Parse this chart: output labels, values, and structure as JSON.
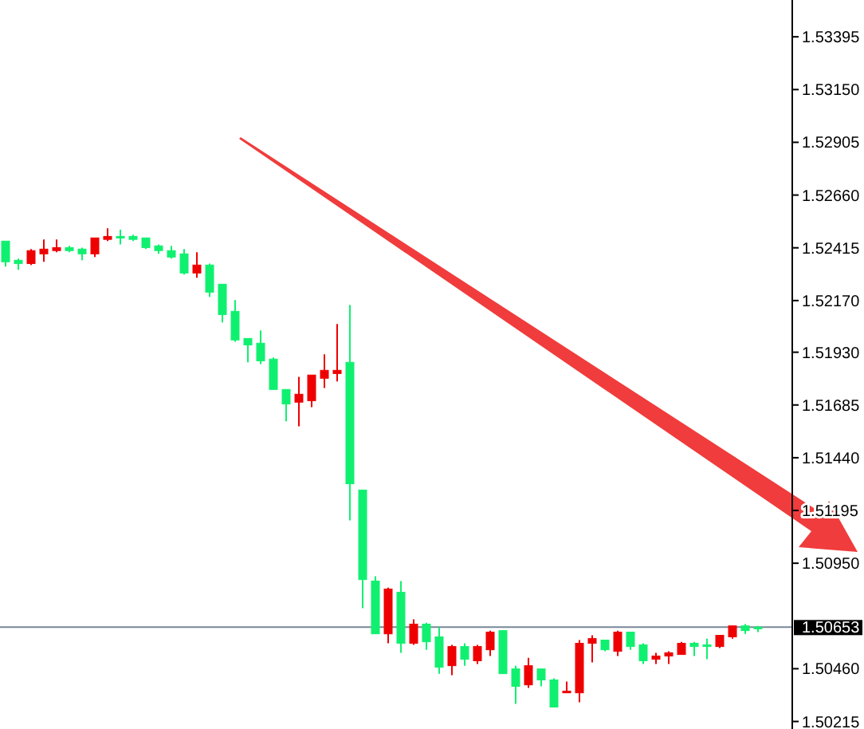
{
  "chart_data": {
    "type": "candlestick",
    "categories": [
      null,
      null,
      null,
      null,
      null,
      null,
      null,
      null,
      null,
      null,
      null,
      null,
      null,
      null,
      null,
      null,
      null,
      null,
      null,
      null,
      null,
      null,
      null,
      null,
      null,
      null,
      null,
      null,
      null,
      null,
      null,
      null,
      null,
      null,
      null,
      null,
      null,
      null,
      null,
      null,
      null,
      null,
      null,
      null,
      null,
      null,
      null,
      null,
      null,
      null,
      null,
      null,
      null,
      null,
      null,
      null,
      null,
      null,
      null,
      null
    ],
    "ohlc": [
      [
        1.52446,
        1.52446,
        1.52328,
        1.5235
      ],
      [
        1.52357,
        1.52365,
        1.52313,
        1.52342
      ],
      [
        1.52342,
        1.52409,
        1.52335,
        1.52402
      ],
      [
        1.52387,
        1.52454,
        1.5235,
        1.52409
      ],
      [
        1.52402,
        1.52454,
        1.52394,
        1.52416
      ],
      [
        1.52416,
        1.52424,
        1.52394,
        1.52402
      ],
      [
        1.52409,
        1.52416,
        1.52357,
        1.52387
      ],
      [
        1.52387,
        1.52461,
        1.52372,
        1.52461
      ],
      [
        1.52454,
        1.52506,
        1.52446,
        1.52468
      ],
      [
        1.52468,
        1.52499,
        1.52431,
        1.52461
      ],
      [
        1.52468,
        1.52476,
        1.52446,
        1.52454
      ],
      [
        1.52461,
        1.52461,
        1.52409,
        1.52416
      ],
      [
        1.52424,
        1.52431,
        1.52387,
        1.52402
      ],
      [
        1.52402,
        1.52424,
        1.52365,
        1.52372
      ],
      [
        1.52387,
        1.52409,
        1.52291,
        1.52298
      ],
      [
        1.52298,
        1.52394,
        1.52276,
        1.52335
      ],
      [
        1.52335,
        1.52342,
        1.52187,
        1.52209
      ],
      [
        1.52246,
        1.52246,
        1.52068,
        1.52105
      ],
      [
        1.5212,
        1.52172,
        1.51979,
        1.51987
      ],
      [
        1.51994,
        1.51994,
        1.51883,
        1.51964
      ],
      [
        1.51972,
        1.52031,
        1.51875,
        1.5189
      ],
      [
        1.51898,
        1.51905,
        1.51757,
        1.51757
      ],
      [
        1.51757,
        1.51757,
        1.51609,
        1.5169
      ],
      [
        1.51698,
        1.51816,
        1.51586,
        1.51735
      ],
      [
        1.51705,
        1.51824,
        1.51675,
        1.51824
      ],
      [
        1.51809,
        1.5192,
        1.51764,
        1.51846
      ],
      [
        1.51831,
        1.52061,
        1.51794,
        1.51846
      ],
      [
        1.51883,
        1.5215,
        1.51149,
        1.51319
      ],
      [
        1.5129,
        1.5129,
        1.50741,
        1.50874
      ],
      [
        1.50867,
        1.50889,
        1.50622,
        1.50622
      ],
      [
        1.50622,
        1.50837,
        1.50578,
        1.5083
      ],
      [
        1.50815,
        1.50867,
        1.50534,
        1.50578
      ],
      [
        1.50578,
        1.50689,
        1.50571,
        1.50667
      ],
      [
        1.50667,
        1.50674,
        1.50548,
        1.50585
      ],
      [
        1.50608,
        1.50652,
        1.50437,
        1.50467
      ],
      [
        1.50474,
        1.50571,
        1.5043,
        1.50563
      ],
      [
        1.50563,
        1.50578,
        1.50474,
        1.50504
      ],
      [
        1.50497,
        1.50571,
        1.50482,
        1.50563
      ],
      [
        1.50548,
        1.50637,
        1.50519,
        1.5063
      ],
      [
        1.50637,
        1.50637,
        1.50437,
        1.50437
      ],
      [
        1.50459,
        1.50474,
        1.50297,
        1.50378
      ],
      [
        1.50385,
        1.50511,
        1.50371,
        1.50474
      ],
      [
        1.50459,
        1.50459,
        1.50378,
        1.50408
      ],
      [
        1.50408,
        1.50415,
        1.50282,
        1.50282
      ],
      [
        1.50348,
        1.504,
        1.50348,
        1.50356
      ],
      [
        1.50348,
        1.50593,
        1.50304,
        1.50578
      ],
      [
        1.50578,
        1.50615,
        1.50489,
        1.506
      ],
      [
        1.50593,
        1.50593,
        1.50541,
        1.50548
      ],
      [
        1.50541,
        1.50637,
        1.50519,
        1.5063
      ],
      [
        1.5063,
        1.5063,
        1.50548,
        1.50563
      ],
      [
        1.50571,
        1.50578,
        1.50482,
        1.50497
      ],
      [
        1.50504,
        1.50534,
        1.50482,
        1.50519
      ],
      [
        1.50519,
        1.50541,
        1.50482,
        1.50534
      ],
      [
        1.50526,
        1.50585,
        1.50526,
        1.50578
      ],
      [
        1.50578,
        1.50585,
        1.50519,
        1.50563
      ],
      [
        1.50571,
        1.506,
        1.50504,
        1.50563
      ],
      [
        1.50563,
        1.50615,
        1.50556,
        1.50615
      ],
      [
        1.50608,
        1.50659,
        1.506,
        1.50659
      ],
      [
        1.50659,
        1.50667,
        1.50622,
        1.50637
      ],
      [
        1.50653,
        1.50659,
        1.5063,
        1.50653
      ]
    ],
    "colors": [
      "#10f070",
      "#10f070",
      "#ee0000",
      "#ee0000",
      "#ee0000",
      "#10f070",
      "#10f070",
      "#ee0000",
      "#ee0000",
      "#10f070",
      "#10f070",
      "#10f070",
      "#10f070",
      "#10f070",
      "#10f070",
      "#ee0000",
      "#10f070",
      "#10f070",
      "#10f070",
      "#10f070",
      "#10f070",
      "#10f070",
      "#10f070",
      "#ee0000",
      "#ee0000",
      "#ee0000",
      "#ee0000",
      "#10f070",
      "#10f070",
      "#10f070",
      "#ee0000",
      "#10f070",
      "#ee0000",
      "#10f070",
      "#10f070",
      "#ee0000",
      "#10f070",
      "#ee0000",
      "#ee0000",
      "#10f070",
      "#10f070",
      "#ee0000",
      "#10f070",
      "#10f070",
      "#ee0000",
      "#ee0000",
      "#ee0000",
      "#10f070",
      "#ee0000",
      "#10f070",
      "#10f070",
      "#ee0000",
      "#ee0000",
      "#ee0000",
      "#10f070",
      "#10f070",
      "#ee0000",
      "#ee0000",
      "#10f070",
      "#10f070"
    ],
    "ylim": [
      1.5018,
      1.53566
    ],
    "yticks": [
      1.53395,
      {
        "value": 1.5315,
        "label": "1.53150"
      },
      1.52905,
      {
        "value": 1.5266,
        "label": "1.52660"
      },
      1.52415,
      {
        "value": 1.5217,
        "label": "1.52170"
      },
      {
        "value": 1.5193,
        "label": "1.51930"
      },
      1.51685,
      {
        "value": 1.5144,
        "label": "1.51440"
      },
      1.51195,
      {
        "value": 1.5095,
        "label": "1.50950"
      },
      {
        "value": 1.5046,
        "label": "1.50460"
      },
      1.50215
    ],
    "ref_lines": [
      {
        "axis": "y",
        "value": 1.50653,
        "label": "1.50653",
        "color": "#778899"
      }
    ],
    "tick_labels": "y"
  }
}
